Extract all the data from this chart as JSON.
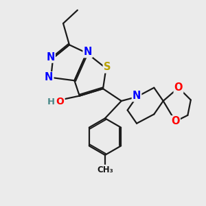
{
  "bg_color": "#ebebeb",
  "bond_color": "#1a1a1a",
  "N_color": "#0000ff",
  "S_color": "#b8a000",
  "O_color": "#ff0000",
  "H_color": "#4a8a8a",
  "C_color": "#1a1a1a",
  "bond_width": 1.6,
  "font_size": 10.5,
  "fig_w": 3.0,
  "fig_h": 3.0,
  "dpi": 100,
  "xlim": [
    0,
    10
  ],
  "ylim": [
    0,
    10
  ]
}
